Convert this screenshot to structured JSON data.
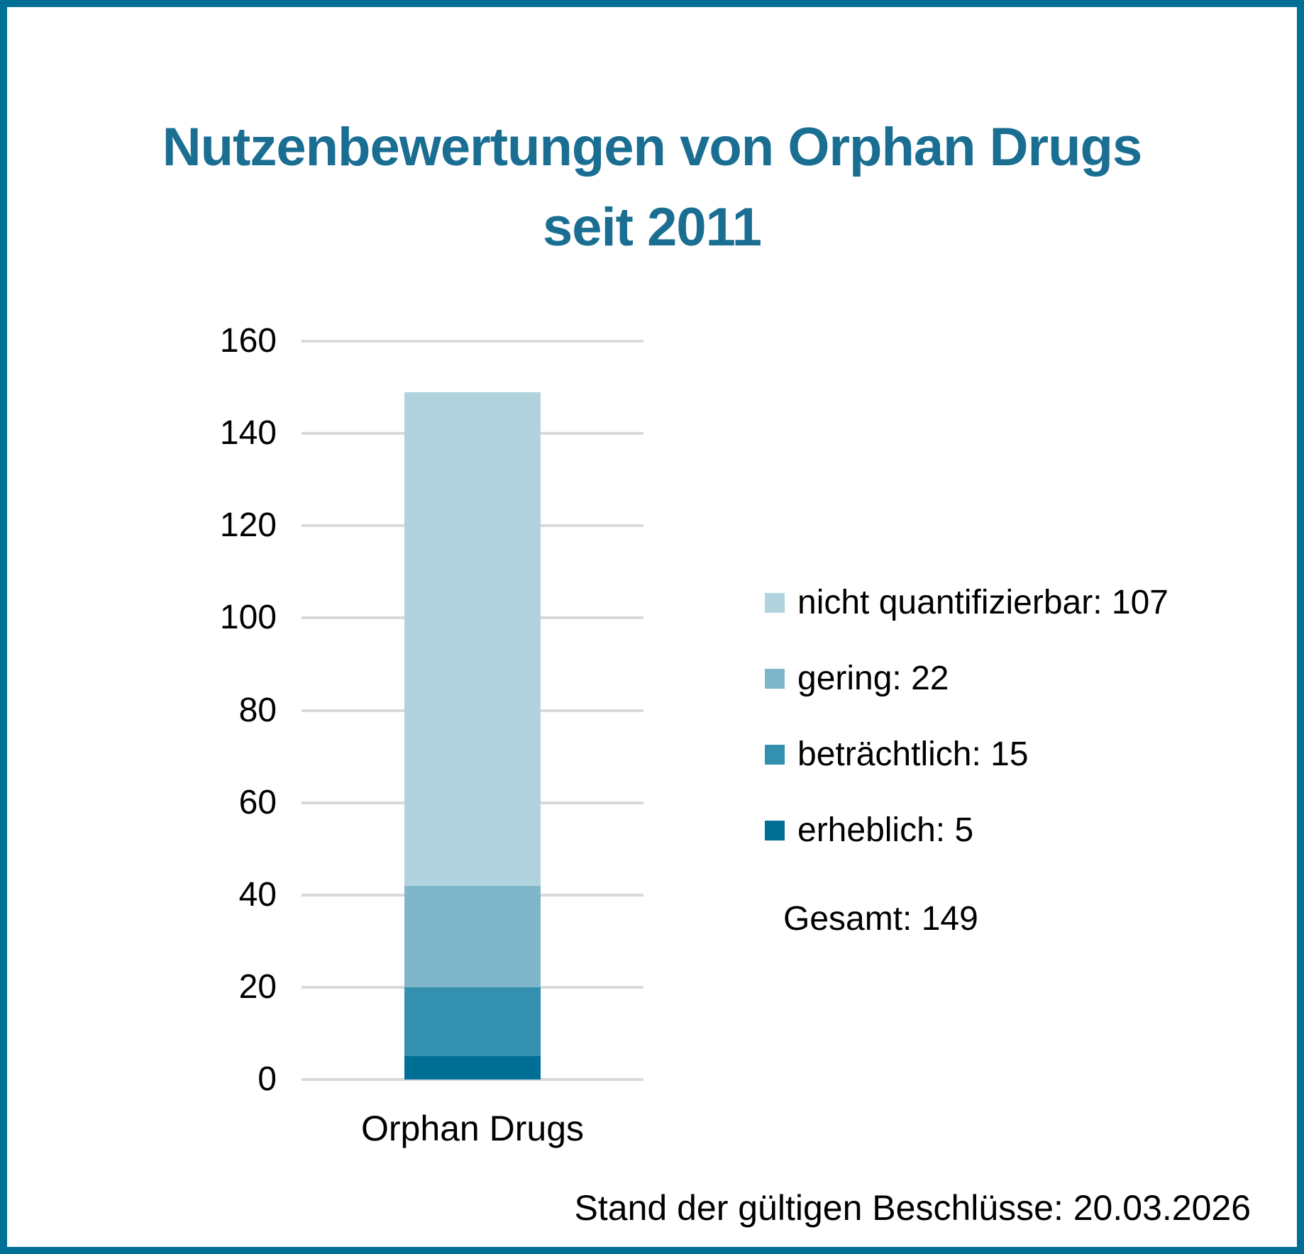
{
  "header": {
    "title_line1": "Nutzenbewertungen von Orphan Drugs",
    "title_line2": "seit 2011"
  },
  "chart_data": {
    "type": "bar",
    "stacked": true,
    "title": "Nutzenbewertungen von Orphan Drugs seit 2011",
    "categories": [
      "Orphan Drugs"
    ],
    "series": [
      {
        "name": "nicht quantifizierbar",
        "values": [
          107
        ],
        "color": "#b1d3de"
      },
      {
        "name": "gering",
        "values": [
          22
        ],
        "color": "#7fb6ca"
      },
      {
        "name": "beträchtlich",
        "values": [
          15
        ],
        "color": "#3390ae"
      },
      {
        "name": "erheblich",
        "values": [
          5
        ],
        "color": "#006f96"
      }
    ],
    "total": 149,
    "xlabel": "",
    "ylabel": "",
    "ylim": [
      0,
      160
    ],
    "ytick_step": 20,
    "grid": true,
    "legend_position": "right"
  },
  "legend": {
    "items": [
      {
        "text": "nicht quantifizierbar: 107",
        "color": "#b1d3de"
      },
      {
        "text": "gering: 22",
        "color": "#7fb6ca"
      },
      {
        "text": "beträchtlich: 15",
        "color": "#3390ae"
      },
      {
        "text": "erheblich: 5",
        "color": "#006f96"
      }
    ],
    "total_text": "Gesamt: 149"
  },
  "footer": {
    "status_text": "Stand der gültigen Beschlüsse: 20.03.2026"
  },
  "colors": {
    "border": "#006f96",
    "title": "#1a6e92",
    "gridline": "#d9d9d9"
  }
}
